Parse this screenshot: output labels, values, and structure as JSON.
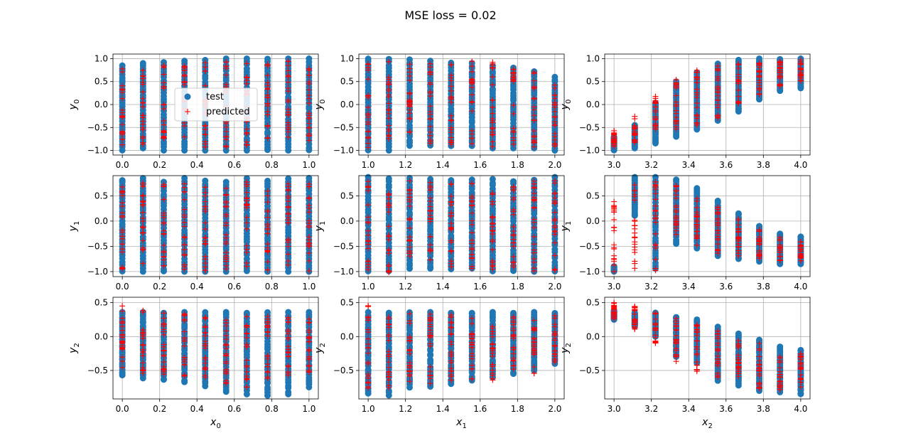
{
  "title": "MSE loss = 0.02",
  "colors": {
    "test": "#1f77b4",
    "predicted": "#ff0000",
    "grid": "#b0b0b0"
  },
  "legend": {
    "placement": "upper-center",
    "entries": [
      "test",
      "predicted"
    ]
  },
  "chart_data": [
    {
      "type": "scatter",
      "row": 0,
      "col": 0,
      "xlabel": "",
      "ylabel": "y_0",
      "xlim": [
        -0.05,
        1.05
      ],
      "ylim": [
        -1.1,
        1.1
      ],
      "xticks": [
        0.0,
        0.2,
        0.4,
        0.6,
        0.8,
        1.0
      ],
      "xtick_labels": [
        "0.0",
        "0.2",
        "0.4",
        "0.6",
        "0.8",
        "1.0"
      ],
      "yticks": [
        -1.0,
        -0.5,
        0.0,
        0.5,
        1.0
      ],
      "ytick_labels": [
        "−1.0",
        "−0.5",
        "0.0",
        "0.5",
        "1.0"
      ],
      "grid": true,
      "x_levels": [
        0.0,
        0.111,
        0.222,
        0.333,
        0.444,
        0.556,
        0.667,
        0.778,
        0.889,
        1.0
      ],
      "test_ranges": [
        [
          -1.0,
          0.85
        ],
        [
          -0.95,
          0.9
        ],
        [
          -1.0,
          0.92
        ],
        [
          -1.0,
          0.95
        ],
        [
          -1.0,
          0.97
        ],
        [
          -1.0,
          1.0
        ],
        [
          -1.0,
          1.0
        ],
        [
          -1.0,
          1.0
        ],
        [
          -1.0,
          1.0
        ],
        [
          -1.0,
          1.0
        ]
      ],
      "pred_ranges": [
        [
          -0.9,
          0.8
        ],
        [
          -0.9,
          0.85
        ],
        [
          -0.9,
          0.9
        ],
        [
          -0.9,
          0.92
        ],
        [
          -0.95,
          0.95
        ],
        [
          -0.95,
          0.97
        ],
        [
          -0.95,
          0.97
        ],
        [
          -0.95,
          0.97
        ],
        [
          -0.9,
          0.97
        ],
        [
          -0.9,
          0.97
        ]
      ]
    },
    {
      "type": "scatter",
      "row": 0,
      "col": 1,
      "xlabel": "",
      "ylabel": "y_0",
      "xlim": [
        0.95,
        2.05
      ],
      "ylim": [
        -1.1,
        1.1
      ],
      "xticks": [
        1.0,
        1.2,
        1.4,
        1.6,
        1.8,
        2.0
      ],
      "xtick_labels": [
        "1.0",
        "1.2",
        "1.4",
        "1.6",
        "1.8",
        "2.0"
      ],
      "yticks": [
        -1.0,
        -0.5,
        0.0,
        0.5,
        1.0
      ],
      "ytick_labels": [
        "−1.0",
        "−0.5",
        "0.0",
        "0.5",
        "1.0"
      ],
      "grid": true,
      "x_levels": [
        1.0,
        1.111,
        1.222,
        1.333,
        1.444,
        1.556,
        1.667,
        1.778,
        1.889,
        2.0
      ],
      "test_ranges": [
        [
          -1.0,
          1.0
        ],
        [
          -1.0,
          1.0
        ],
        [
          -0.9,
          0.98
        ],
        [
          -0.9,
          0.95
        ],
        [
          -0.9,
          0.92
        ],
        [
          -0.9,
          0.9
        ],
        [
          -0.95,
          0.85
        ],
        [
          -0.95,
          0.8
        ],
        [
          -0.95,
          0.72
        ],
        [
          -1.0,
          0.6
        ]
      ],
      "pred_ranges": [
        [
          -0.95,
          0.98
        ],
        [
          -0.95,
          0.98
        ],
        [
          -0.9,
          0.95
        ],
        [
          -0.9,
          0.93
        ],
        [
          -0.9,
          0.93
        ],
        [
          -0.9,
          0.97
        ],
        [
          -0.95,
          0.93
        ],
        [
          -0.95,
          0.85
        ],
        [
          -0.95,
          0.78
        ],
        [
          -0.95,
          0.65
        ]
      ]
    },
    {
      "type": "scatter",
      "row": 0,
      "col": 2,
      "xlabel": "",
      "ylabel": "y_0",
      "xlim": [
        2.95,
        4.05
      ],
      "ylim": [
        -1.1,
        1.1
      ],
      "xticks": [
        3.0,
        3.2,
        3.4,
        3.6,
        3.8,
        4.0
      ],
      "xtick_labels": [
        "3.0",
        "3.2",
        "3.4",
        "3.6",
        "3.8",
        "4.0"
      ],
      "yticks": [
        -1.0,
        -0.5,
        0.0,
        0.5,
        1.0
      ],
      "ytick_labels": [
        "−1.0",
        "−0.5",
        "0.0",
        "0.5",
        "1.0"
      ],
      "grid": true,
      "x_levels": [
        3.0,
        3.111,
        3.222,
        3.333,
        3.444,
        3.556,
        3.667,
        3.778,
        3.889,
        4.0
      ],
      "test_ranges": [
        [
          -1.0,
          -0.7
        ],
        [
          -0.95,
          -0.45
        ],
        [
          -0.85,
          0.05
        ],
        [
          -0.7,
          0.5
        ],
        [
          -0.55,
          0.7
        ],
        [
          -0.35,
          0.9
        ],
        [
          -0.15,
          0.97
        ],
        [
          0.1,
          1.0
        ],
        [
          0.3,
          1.0
        ],
        [
          0.35,
          1.0
        ]
      ],
      "pred_ranges": [
        [
          -0.95,
          -0.55
        ],
        [
          -0.9,
          -0.25
        ],
        [
          -0.8,
          0.2
        ],
        [
          -0.6,
          0.55
        ],
        [
          -0.5,
          0.75
        ],
        [
          -0.3,
          0.85
        ],
        [
          0.0,
          0.9
        ],
        [
          0.2,
          0.95
        ],
        [
          0.4,
          0.95
        ],
        [
          0.5,
          0.97
        ]
      ]
    },
    {
      "type": "scatter",
      "row": 1,
      "col": 0,
      "xlabel": "",
      "ylabel": "y_1",
      "xlim": [
        -0.05,
        1.05
      ],
      "ylim": [
        -1.1,
        0.9
      ],
      "xticks": [
        0.0,
        0.2,
        0.4,
        0.6,
        0.8,
        1.0
      ],
      "xtick_labels": [
        "0.0",
        "0.2",
        "0.4",
        "0.6",
        "0.8",
        "1.0"
      ],
      "yticks": [
        -1.0,
        -0.5,
        0.0,
        0.5
      ],
      "ytick_labels": [
        "−1.0",
        "−0.5",
        "0.0",
        "0.5"
      ],
      "grid": true,
      "x_levels": [
        0.0,
        0.111,
        0.222,
        0.333,
        0.444,
        0.556,
        0.667,
        0.778,
        0.889,
        1.0
      ],
      "test_ranges": [
        [
          -1.0,
          0.82
        ],
        [
          -1.0,
          0.85
        ],
        [
          -1.0,
          0.78
        ],
        [
          -1.0,
          0.85
        ],
        [
          -1.0,
          0.8
        ],
        [
          -1.0,
          0.78
        ],
        [
          -1.0,
          0.85
        ],
        [
          -1.0,
          0.8
        ],
        [
          -1.0,
          0.85
        ],
        [
          -1.0,
          0.85
        ]
      ],
      "pred_ranges": [
        [
          -0.95,
          0.78
        ],
        [
          -0.95,
          0.8
        ],
        [
          -0.95,
          0.75
        ],
        [
          -1.05,
          0.8
        ],
        [
          -1.05,
          0.75
        ],
        [
          -1.0,
          0.65
        ],
        [
          -1.0,
          0.8
        ],
        [
          -1.0,
          0.75
        ],
        [
          -1.0,
          0.8
        ],
        [
          -1.0,
          0.78
        ]
      ]
    },
    {
      "type": "scatter",
      "row": 1,
      "col": 1,
      "xlabel": "",
      "ylabel": "y_1",
      "xlim": [
        0.95,
        2.05
      ],
      "ylim": [
        -1.1,
        0.9
      ],
      "xticks": [
        1.0,
        1.2,
        1.4,
        1.6,
        1.8,
        2.0
      ],
      "xtick_labels": [
        "1.0",
        "1.2",
        "1.4",
        "1.6",
        "1.8",
        "2.0"
      ],
      "yticks": [
        -1.0,
        -0.5,
        0.0,
        0.5
      ],
      "ytick_labels": [
        "−1.0",
        "−0.5",
        "0.0",
        "0.5"
      ],
      "grid": true,
      "x_levels": [
        1.0,
        1.111,
        1.222,
        1.333,
        1.444,
        1.556,
        1.667,
        1.778,
        1.889,
        2.0
      ],
      "test_ranges": [
        [
          -1.0,
          0.87
        ],
        [
          -1.0,
          0.85
        ],
        [
          -0.95,
          0.85
        ],
        [
          -0.95,
          0.83
        ],
        [
          -0.95,
          0.82
        ],
        [
          -0.95,
          0.82
        ],
        [
          -1.0,
          0.83
        ],
        [
          -1.0,
          0.8
        ],
        [
          -1.0,
          0.82
        ],
        [
          -1.0,
          0.87
        ]
      ],
      "pred_ranges": [
        [
          -1.0,
          0.8
        ],
        [
          -1.05,
          0.8
        ],
        [
          -0.95,
          0.8
        ],
        [
          -0.95,
          0.8
        ],
        [
          -0.95,
          0.8
        ],
        [
          -0.95,
          0.8
        ],
        [
          -1.0,
          0.8
        ],
        [
          -1.0,
          0.78
        ],
        [
          -1.0,
          0.8
        ],
        [
          -1.0,
          0.82
        ]
      ]
    },
    {
      "type": "scatter",
      "row": 1,
      "col": 2,
      "xlabel": "",
      "ylabel": "y_1",
      "xlim": [
        2.95,
        4.05
      ],
      "ylim": [
        -1.1,
        0.9
      ],
      "xticks": [
        3.0,
        3.2,
        3.4,
        3.6,
        3.8,
        4.0
      ],
      "xtick_labels": [
        "3.0",
        "3.2",
        "3.4",
        "3.6",
        "3.8",
        "4.0"
      ],
      "yticks": [
        -1.0,
        -0.5,
        0.0,
        0.5
      ],
      "ytick_labels": [
        "−1.0",
        "−0.5",
        "0.0",
        "0.5"
      ],
      "grid": true,
      "x_levels": [
        3.0,
        3.111,
        3.222,
        3.333,
        3.444,
        3.556,
        3.667,
        3.778,
        3.889,
        4.0
      ],
      "test_ranges": [
        [
          -1.0,
          -0.9
        ],
        [
          0.1,
          0.87
        ],
        [
          -0.95,
          0.87
        ],
        [
          -0.45,
          0.82
        ],
        [
          -0.55,
          0.65
        ],
        [
          -0.7,
          0.4
        ],
        [
          -0.75,
          0.15
        ],
        [
          -0.8,
          -0.1
        ],
        [
          -0.85,
          -0.25
        ],
        [
          -0.85,
          -0.3
        ]
      ],
      "pred_ranges": [
        [
          -1.0,
          0.4
        ],
        [
          -1.0,
          0.8
        ],
        [
          -1.0,
          0.82
        ],
        [
          -0.3,
          0.78
        ],
        [
          -0.5,
          0.55
        ],
        [
          -0.65,
          0.3
        ],
        [
          -0.7,
          0.05
        ],
        [
          -0.75,
          -0.15
        ],
        [
          -0.8,
          -0.3
        ],
        [
          -0.8,
          -0.4
        ]
      ]
    },
    {
      "type": "scatter",
      "row": 2,
      "col": 0,
      "xlabel": "x_0",
      "ylabel": "y_2",
      "xlim": [
        -0.05,
        1.05
      ],
      "ylim": [
        -0.92,
        0.58
      ],
      "xticks": [
        0.0,
        0.2,
        0.4,
        0.6,
        0.8,
        1.0
      ],
      "xtick_labels": [
        "0.0",
        "0.2",
        "0.4",
        "0.6",
        "0.8",
        "1.0"
      ],
      "yticks": [
        -0.5,
        0.0,
        0.5
      ],
      "ytick_labels": [
        "−0.5",
        "0.0",
        "0.5"
      ],
      "grid": true,
      "x_levels": [
        0.0,
        0.111,
        0.222,
        0.333,
        0.444,
        0.556,
        0.667,
        0.778,
        0.889,
        1.0
      ],
      "test_ranges": [
        [
          -0.58,
          0.36
        ],
        [
          -0.62,
          0.36
        ],
        [
          -0.65,
          0.36
        ],
        [
          -0.67,
          0.36
        ],
        [
          -0.73,
          0.36
        ],
        [
          -0.82,
          0.36
        ],
        [
          -0.85,
          0.36
        ],
        [
          -0.87,
          0.36
        ],
        [
          -0.85,
          0.36
        ],
        [
          -0.75,
          0.36
        ]
      ],
      "pred_ranges": [
        [
          -0.5,
          0.52
        ],
        [
          -0.55,
          0.42
        ],
        [
          -0.58,
          0.45
        ],
        [
          -0.6,
          0.4
        ],
        [
          -0.65,
          0.3
        ],
        [
          -0.7,
          0.3
        ],
        [
          -0.75,
          0.3
        ],
        [
          -0.75,
          0.3
        ],
        [
          -0.7,
          0.3
        ],
        [
          -0.6,
          0.3
        ]
      ]
    },
    {
      "type": "scatter",
      "row": 2,
      "col": 1,
      "xlabel": "x_1",
      "ylabel": "y_2",
      "xlim": [
        0.95,
        2.05
      ],
      "ylim": [
        -0.92,
        0.58
      ],
      "xticks": [
        1.0,
        1.2,
        1.4,
        1.6,
        1.8,
        2.0
      ],
      "xtick_labels": [
        "1.0",
        "1.2",
        "1.4",
        "1.6",
        "1.8",
        "2.0"
      ],
      "yticks": [
        -0.5,
        0.0,
        0.5
      ],
      "ytick_labels": [
        "−0.5",
        "0.0",
        "0.5"
      ],
      "grid": true,
      "x_levels": [
        1.0,
        1.111,
        1.222,
        1.333,
        1.444,
        1.556,
        1.667,
        1.778,
        1.889,
        2.0
      ],
      "test_ranges": [
        [
          -0.85,
          0.36
        ],
        [
          -0.87,
          0.36
        ],
        [
          -0.75,
          0.36
        ],
        [
          -0.75,
          0.36
        ],
        [
          -0.7,
          0.36
        ],
        [
          -0.65,
          0.36
        ],
        [
          -0.6,
          0.36
        ],
        [
          -0.55,
          0.36
        ],
        [
          -0.5,
          0.36
        ],
        [
          -0.4,
          0.36
        ]
      ],
      "pred_ranges": [
        [
          -0.8,
          0.55
        ],
        [
          -0.8,
          0.35
        ],
        [
          -0.7,
          0.35
        ],
        [
          -0.7,
          0.35
        ],
        [
          -0.65,
          0.32
        ],
        [
          -0.65,
          0.3
        ],
        [
          -0.65,
          0.3
        ],
        [
          -0.5,
          0.3
        ],
        [
          -0.55,
          0.3
        ],
        [
          -0.42,
          0.32
        ]
      ]
    },
    {
      "type": "scatter",
      "row": 2,
      "col": 2,
      "xlabel": "x_2",
      "ylabel": "y_2",
      "xlim": [
        2.95,
        4.05
      ],
      "ylim": [
        -0.92,
        0.58
      ],
      "xticks": [
        3.0,
        3.2,
        3.4,
        3.6,
        3.8,
        4.0
      ],
      "xtick_labels": [
        "3.0",
        "3.2",
        "3.4",
        "3.6",
        "3.8",
        "4.0"
      ],
      "yticks": [
        -0.5,
        0.0,
        0.5
      ],
      "ytick_labels": [
        "−0.5",
        "0.0",
        "0.5"
      ],
      "grid": true,
      "x_levels": [
        3.0,
        3.111,
        3.222,
        3.333,
        3.444,
        3.556,
        3.667,
        3.778,
        3.889,
        4.0
      ],
      "test_ranges": [
        [
          0.25,
          0.38
        ],
        [
          0.15,
          0.35
        ],
        [
          0.0,
          0.35
        ],
        [
          -0.3,
          0.3
        ],
        [
          -0.4,
          0.25
        ],
        [
          -0.65,
          0.15
        ],
        [
          -0.72,
          0.05
        ],
        [
          -0.8,
          -0.05
        ],
        [
          -0.82,
          -0.15
        ],
        [
          -0.85,
          -0.2
        ]
      ],
      "pred_ranges": [
        [
          0.25,
          0.52
        ],
        [
          0.1,
          0.45
        ],
        [
          -0.1,
          0.38
        ],
        [
          -0.38,
          0.3
        ],
        [
          -0.52,
          0.2
        ],
        [
          -0.62,
          0.1
        ],
        [
          -0.6,
          -0.05
        ],
        [
          -0.78,
          -0.1
        ],
        [
          -0.8,
          -0.2
        ],
        [
          -0.8,
          -0.25
        ]
      ]
    }
  ]
}
